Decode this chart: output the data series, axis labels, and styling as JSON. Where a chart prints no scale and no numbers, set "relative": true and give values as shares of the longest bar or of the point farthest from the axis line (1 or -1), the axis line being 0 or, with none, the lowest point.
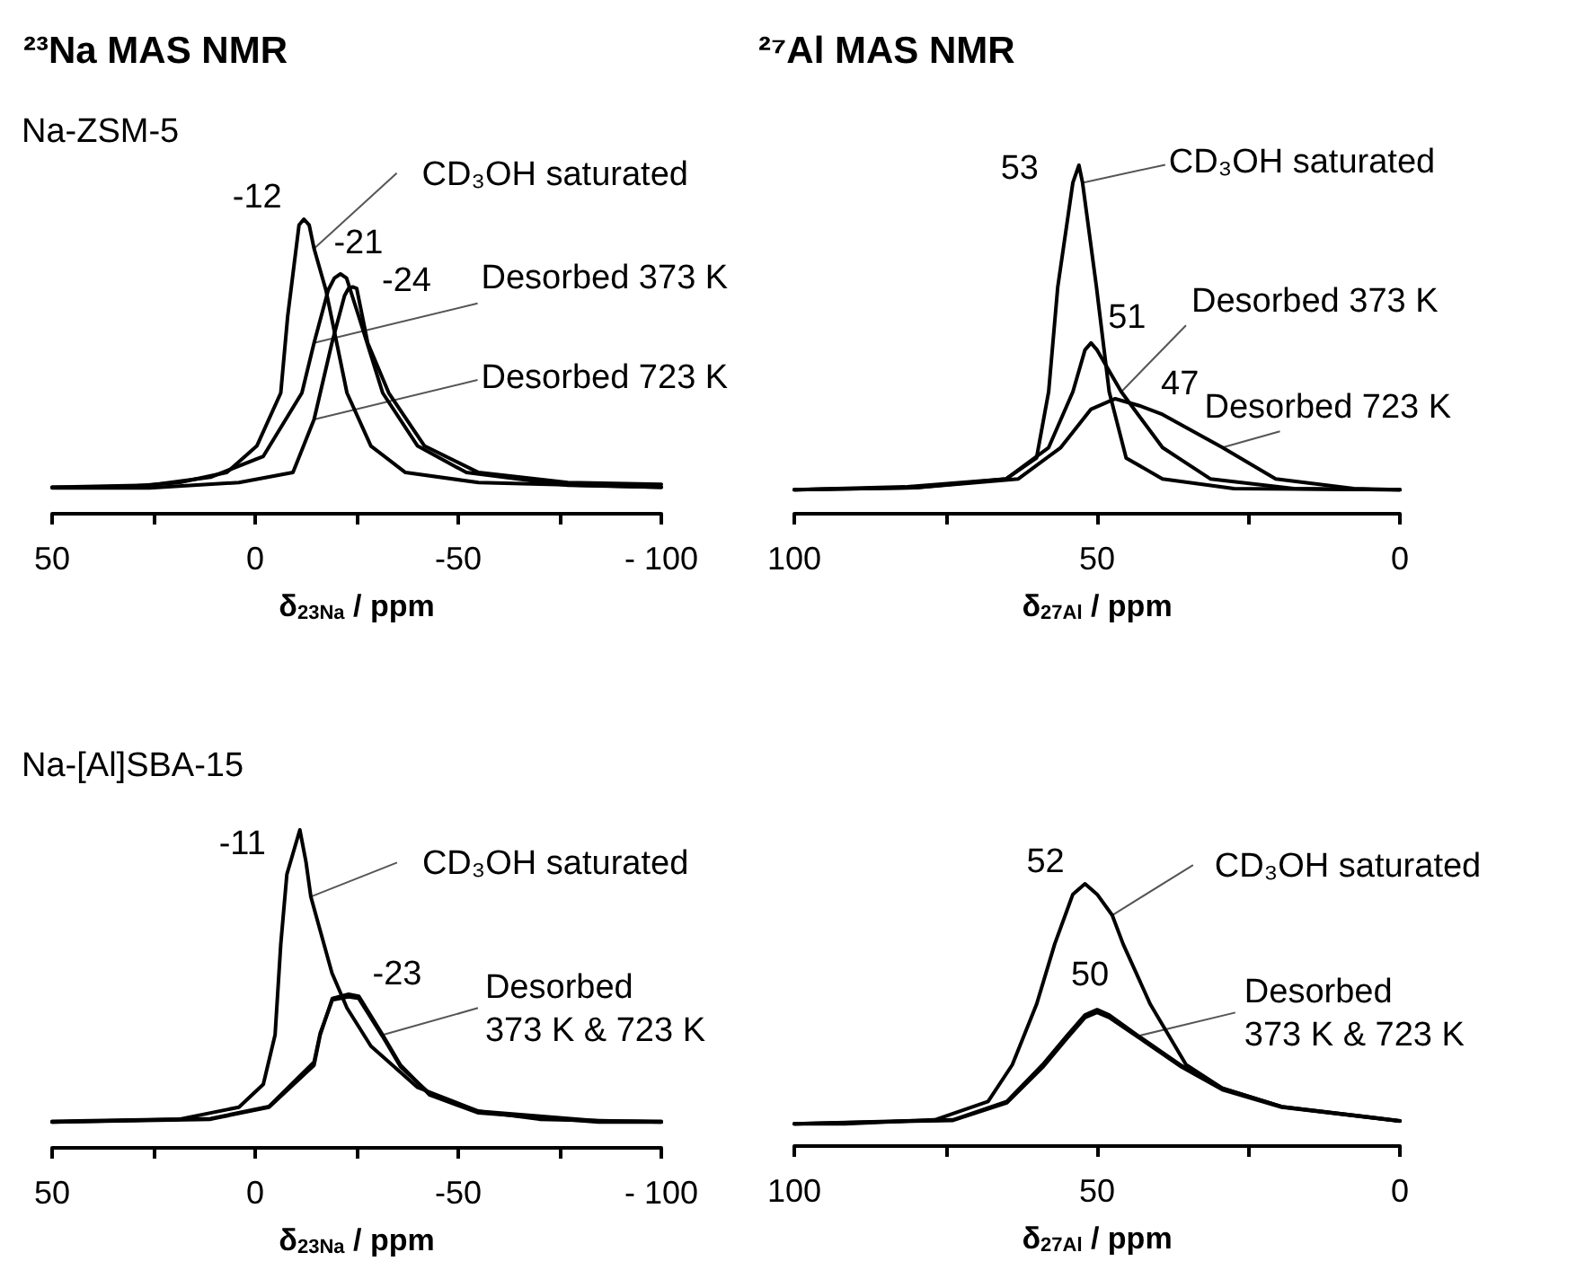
{
  "chart_data": [
    {
      "type": "line",
      "title": "²³Na MAS NMR",
      "subtitle": "Na-ZSM-5",
      "xlabel": "δ$_{23Na}$ / ppm",
      "relative": true,
      "xlim": [
        50,
        -100
      ],
      "xticks": [
        50,
        {
          "value": 25,
          "label": null
        },
        0,
        {
          "value": -25,
          "label": null
        },
        -50,
        {
          "value": -75,
          "label": null
        },
        {
          "value": -100,
          "label": "- 100"
        }
      ],
      "series": [
        {
          "color": "#000000",
          "x": [
            50,
            33.5,
            18.7,
            7,
            -0.4,
            -6.3,
            -8,
            -10.8,
            -12,
            -13.3,
            -14.5,
            -17.4,
            -22.6,
            -28.5,
            -37,
            -55,
            -100
          ],
          "values": [
            0.09,
            0.09,
            0.106,
            0.14,
            0.23,
            0.41,
            0.67,
            0.98,
            1,
            0.98,
            0.9,
            0.76,
            0.41,
            0.23,
            0.14,
            0.106,
            0.09
          ]
        },
        {
          "color": "#000000",
          "x": [
            50,
            26,
            11,
            -2,
            -11.5,
            -14.5,
            -18,
            -19.5,
            -21,
            -22.5,
            -25.5,
            -31.4,
            -40,
            -52,
            -77,
            -100
          ],
          "values": [
            0.09,
            0.097,
            0.124,
            0.195,
            0.41,
            0.58,
            0.76,
            0.8,
            0.814,
            0.8,
            0.67,
            0.41,
            0.23,
            0.14,
            0.097,
            0.09
          ]
        },
        {
          "color": "#000000",
          "x": [
            50,
            26,
            4,
            -9.3,
            -14.5,
            -18.9,
            -22,
            -23,
            -24,
            -25,
            -27.7,
            -32.9,
            -41.7,
            -55,
            -77,
            -100
          ],
          "values": [
            0.088,
            0.088,
            0.106,
            0.14,
            0.32,
            0.58,
            0.74,
            0.765,
            0.77,
            0.765,
            0.58,
            0.41,
            0.23,
            0.14,
            0.106,
            0.1
          ]
        }
      ],
      "annotations": [
        {
          "text": "-12",
          "x": -12,
          "y": 1
        },
        {
          "text": "-21",
          "x": -21,
          "y": 0.814
        },
        {
          "text": "-24",
          "x": -24,
          "y": 0.77
        },
        {
          "text": "CD₃OH saturated",
          "x": -14.5,
          "y": 0.9
        },
        {
          "text": "Desorbed 373 K",
          "x": -14.5,
          "y": 0.58
        },
        {
          "text": "Desorbed 723 K",
          "x": -14.5,
          "y": 0.32
        }
      ]
    },
    {
      "type": "line",
      "title": "²⁷Al MAS NMR",
      "xlabel": "δ$_{27Al}$ / ppm",
      "relative": true,
      "xlim": [
        100,
        0
      ],
      "xticks": [
        100,
        {
          "value": 75,
          "label": null
        },
        50,
        {
          "value": 25,
          "label": null
        },
        0
      ],
      "series": [
        {
          "color": "#000000",
          "x": [
            100,
            81.7,
            65,
            60,
            58,
            56.5,
            54,
            53,
            52.4,
            50.1,
            48,
            45.2,
            39.2,
            27.4,
            0
          ],
          "values": [
            0.069,
            0.077,
            0.1,
            0.16,
            0.35,
            0.65,
            0.95,
            1,
            0.95,
            0.65,
            0.35,
            0.16,
            0.1,
            0.072,
            0.069
          ]
        },
        {
          "color": "#000000",
          "x": [
            100,
            80,
            65,
            58,
            54,
            52,
            51,
            50,
            46,
            39.2,
            31.3,
            17.5,
            0
          ],
          "values": [
            0.069,
            0.075,
            0.1,
            0.19,
            0.35,
            0.47,
            0.49,
            0.47,
            0.35,
            0.19,
            0.1,
            0.072,
            0.069
          ]
        },
        {
          "color": "#000000",
          "x": [
            100,
            80,
            63,
            56,
            51,
            47,
            43,
            39.2,
            29.3,
            20.5,
            7.6,
            0
          ],
          "values": [
            0.069,
            0.075,
            0.1,
            0.19,
            0.3,
            0.33,
            0.31,
            0.285,
            0.19,
            0.1,
            0.072,
            0.069
          ]
        }
      ],
      "annotations": [
        {
          "text": "53",
          "x": 53,
          "y": 1
        },
        {
          "text": "51",
          "x": 51,
          "y": 0.49
        },
        {
          "text": "47",
          "x": 47,
          "y": 0.33
        },
        {
          "text": "CD₃OH saturated",
          "x": 52.4,
          "y": 0.95
        },
        {
          "text": "Desorbed 373 K",
          "x": 46,
          "y": 0.35
        },
        {
          "text": "Desorbed 723 K",
          "x": 29.3,
          "y": 0.19
        }
      ]
    },
    {
      "type": "line",
      "subtitle": "Na-[Al]SBA-15",
      "xlabel": "δ$_{23Na}$ / ppm",
      "relative": true,
      "xlim": [
        50,
        -100
      ],
      "xticks": [
        50,
        {
          "value": 25,
          "label": null
        },
        0,
        {
          "value": -25,
          "label": null
        },
        -50,
        {
          "value": -75,
          "label": null
        },
        {
          "value": -100,
          "label": "- 100"
        }
      ],
      "series": [
        {
          "color": "#000000",
          "x": [
            50,
            18.7,
            4,
            -2,
            -4.9,
            -6.3,
            -7.8,
            -11,
            -12.5,
            -13.7,
            -18.9,
            -22.6,
            -28.5,
            -40,
            -55,
            -70,
            -100
          ],
          "values": [
            0.081,
            0.09,
            0.128,
            0.2,
            0.355,
            0.64,
            0.86,
            1,
            0.9,
            0.79,
            0.55,
            0.44,
            0.32,
            0.19,
            0.115,
            0.09,
            0.081
          ]
        },
        {
          "color": "#000000",
          "x": [
            50,
            11,
            -3.4,
            -14.5,
            -16,
            -19,
            -23,
            -25.5,
            -31.4,
            -35.8,
            -43,
            -55,
            -84.5,
            -100
          ],
          "values": [
            0.081,
            0.09,
            0.128,
            0.26,
            0.355,
            0.47,
            0.483,
            0.477,
            0.355,
            0.26,
            0.166,
            0.11,
            0.081,
            0.081
          ]
        },
        {
          "color": "#000000",
          "x": [
            50,
            11,
            -3.4,
            -14.5,
            -16,
            -19,
            -23,
            -25.5,
            -31.4,
            -35.8,
            -43,
            -55,
            -84.5,
            -100
          ],
          "values": [
            0.083,
            0.092,
            0.13,
            0.27,
            0.36,
            0.465,
            0.475,
            0.47,
            0.35,
            0.255,
            0.17,
            0.115,
            0.085,
            0.083
          ]
        }
      ],
      "annotations": [
        {
          "text": "-11",
          "x": -11,
          "y": 1
        },
        {
          "text": "-23",
          "x": -23,
          "y": 0.483
        },
        {
          "text": "CD₃OH saturated",
          "x": -13.7,
          "y": 0.79
        },
        {
          "text": "Desorbed\n373 K & 723 K",
          "x": -31.4,
          "y": 0.355
        }
      ]
    },
    {
      "type": "line",
      "xlabel": "δ$_{27Al}$ / ppm",
      "relative": true,
      "xlim": [
        100,
        0
      ],
      "xticks": [
        100,
        {
          "value": 75,
          "label": null
        },
        50,
        {
          "value": 25,
          "label": null
        },
        0
      ],
      "series": [
        {
          "color": "#000000",
          "x": [
            100,
            91.6,
            76.8,
            68,
            64,
            60,
            57,
            54,
            52,
            50,
            47.5,
            45.7,
            41.2,
            35.3,
            29.3,
            19.5,
            0
          ],
          "values": [
            0.085,
            0.085,
            0.1,
            0.17,
            0.31,
            0.54,
            0.77,
            0.96,
            1,
            0.96,
            0.88,
            0.77,
            0.54,
            0.31,
            0.22,
            0.15,
            0.096
          ]
        },
        {
          "color": "#000000",
          "x": [
            100,
            73.8,
            64.9,
            59,
            55,
            52,
            50,
            48,
            43.2,
            36.3,
            29.3,
            19.5,
            0
          ],
          "values": [
            0.085,
            0.1,
            0.17,
            0.31,
            0.42,
            0.5,
            0.52,
            0.5,
            0.42,
            0.31,
            0.22,
            0.15,
            0.096
          ]
        },
        {
          "color": "#000000",
          "x": [
            100,
            73.8,
            64.9,
            59,
            55,
            52,
            50,
            48,
            43.2,
            36.3,
            29.3,
            19.5,
            0
          ],
          "values": [
            0.085,
            0.098,
            0.165,
            0.3,
            0.41,
            0.49,
            0.51,
            0.49,
            0.415,
            0.305,
            0.215,
            0.148,
            0.095
          ]
        }
      ],
      "annotations": [
        {
          "text": "52",
          "x": 52,
          "y": 1
        },
        {
          "text": "50",
          "x": 50,
          "y": 0.52
        },
        {
          "text": "CD₃OH saturated",
          "x": 47.5,
          "y": 0.88
        },
        {
          "text": "Desorbed\n373 K & 723 K",
          "x": 43.2,
          "y": 0.42
        }
      ]
    }
  ]
}
